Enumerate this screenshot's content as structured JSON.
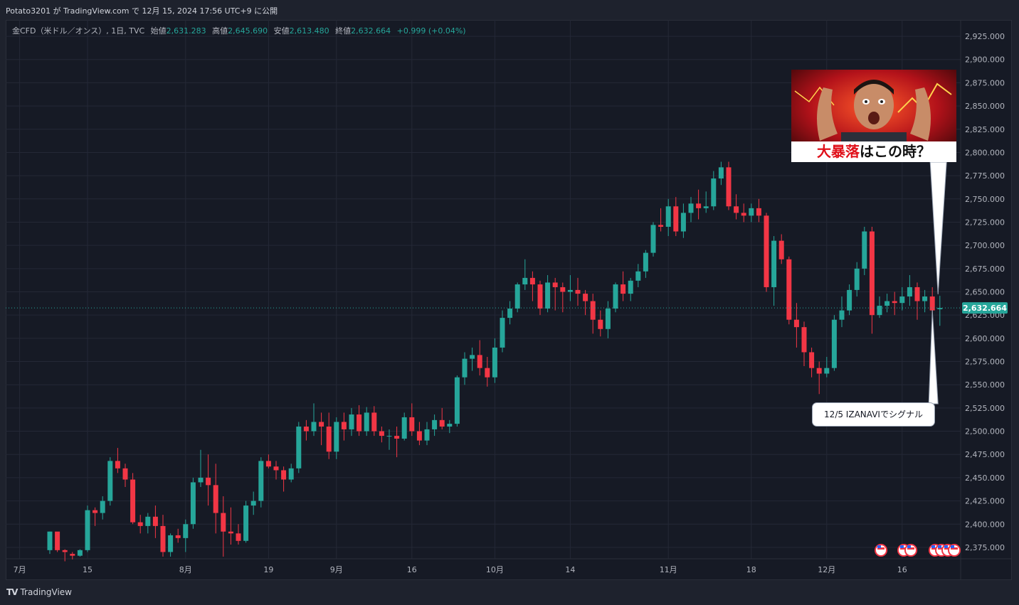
{
  "header": {
    "published_line": "Potato3201 が TradingView.com で 12月 15, 2024 17:56 UTC+9 に公開"
  },
  "legend": {
    "symbol": "金CFD（米ドル／オンス）, 1日, TVC",
    "open_label": "始値",
    "open_value": "2,631.283",
    "high_label": "高値",
    "high_value": "2,645.690",
    "low_label": "安値",
    "low_value": "2,613.480",
    "close_label": "終値",
    "close_value": "2,632.664",
    "change": "+0.999 (+0.04%)"
  },
  "thumbnail": {
    "caption_red": "大暴落",
    "caption_black": "はこの時？"
  },
  "signal_note": "12/5 IZANAVIでシグナル",
  "footer": {
    "logo_text": "TradingView"
  },
  "colors": {
    "up": "#26a69a",
    "down": "#f23645",
    "background": "#161a25",
    "grid": "#242836",
    "text": "#b2b5be",
    "price_tag": "#26a69a"
  },
  "chart_data": {
    "type": "candlestick",
    "title": "",
    "ylim": [
      2365,
      2935
    ],
    "y_ticks": [
      "2,375.000",
      "2,400.000",
      "2,425.000",
      "2,450.000",
      "2,475.000",
      "2,500.000",
      "2,525.000",
      "2,550.000",
      "2,575.000",
      "2,600.000",
      "2,625.000",
      "2,650.000",
      "2,675.000",
      "2,700.000",
      "2,725.000",
      "2,750.000",
      "2,775.000",
      "2,800.000",
      "2,825.000",
      "2,850.000",
      "2,875.000",
      "2,900.000",
      "2,925.000"
    ],
    "x_ticks": [
      {
        "label": "7月",
        "slot": -4
      },
      {
        "label": "15",
        "slot": 5
      },
      {
        "label": "8月",
        "slot": 18
      },
      {
        "label": "19",
        "slot": 29
      },
      {
        "label": "9月",
        "slot": 38
      },
      {
        "label": "16",
        "slot": 48
      },
      {
        "label": "10月",
        "slot": 59
      },
      {
        "label": "14",
        "slot": 69
      },
      {
        "label": "11月",
        "slot": 82
      },
      {
        "label": "18",
        "slot": 93
      },
      {
        "label": "12月",
        "slot": 103
      },
      {
        "label": "16",
        "slot": 113
      }
    ],
    "last_price": "2,632.664",
    "last_value": 2632.664,
    "candles": [
      [
        2372,
        2392,
        2368,
        2392
      ],
      [
        2392,
        2390,
        2370,
        2372
      ],
      [
        2372,
        2373,
        2360,
        2370
      ],
      [
        2368,
        2370,
        2362,
        2366
      ],
      [
        2366,
        2373,
        2365,
        2372
      ],
      [
        2372,
        2420,
        2370,
        2415
      ],
      [
        2415,
        2418,
        2398,
        2412
      ],
      [
        2412,
        2430,
        2405,
        2425
      ],
      [
        2425,
        2472,
        2420,
        2468
      ],
      [
        2468,
        2482,
        2455,
        2460
      ],
      [
        2460,
        2465,
        2440,
        2448
      ],
      [
        2448,
        2455,
        2400,
        2402
      ],
      [
        2402,
        2410,
        2390,
        2398
      ],
      [
        2398,
        2412,
        2390,
        2408
      ],
      [
        2408,
        2420,
        2385,
        2398
      ],
      [
        2398,
        2410,
        2365,
        2370
      ],
      [
        2370,
        2390,
        2365,
        2388
      ],
      [
        2388,
        2395,
        2380,
        2385
      ],
      [
        2385,
        2405,
        2370,
        2400
      ],
      [
        2400,
        2450,
        2395,
        2445
      ],
      [
        2445,
        2480,
        2440,
        2450
      ],
      [
        2450,
        2475,
        2420,
        2442
      ],
      [
        2442,
        2465,
        2390,
        2412
      ],
      [
        2412,
        2430,
        2365,
        2392
      ],
      [
        2392,
        2418,
        2378,
        2390
      ],
      [
        2390,
        2400,
        2378,
        2382
      ],
      [
        2382,
        2425,
        2380,
        2420
      ],
      [
        2420,
        2435,
        2410,
        2425
      ],
      [
        2425,
        2472,
        2418,
        2468
      ],
      [
        2468,
        2475,
        2460,
        2462
      ],
      [
        2462,
        2468,
        2448,
        2458
      ],
      [
        2458,
        2462,
        2435,
        2448
      ],
      [
        2448,
        2465,
        2445,
        2460
      ],
      [
        2460,
        2510,
        2455,
        2505
      ],
      [
        2505,
        2512,
        2490,
        2500
      ],
      [
        2500,
        2530,
        2495,
        2510
      ],
      [
        2510,
        2520,
        2485,
        2505
      ],
      [
        2505,
        2520,
        2470,
        2478
      ],
      [
        2478,
        2515,
        2470,
        2510
      ],
      [
        2510,
        2520,
        2490,
        2502
      ],
      [
        2502,
        2525,
        2495,
        2518
      ],
      [
        2518,
        2528,
        2495,
        2500
      ],
      [
        2500,
        2526,
        2495,
        2520
      ],
      [
        2520,
        2527,
        2495,
        2500
      ],
      [
        2500,
        2505,
        2488,
        2495
      ],
      [
        2495,
        2502,
        2480,
        2495
      ],
      [
        2495,
        2505,
        2472,
        2492
      ],
      [
        2492,
        2520,
        2490,
        2515
      ],
      [
        2515,
        2530,
        2495,
        2500
      ],
      [
        2500,
        2510,
        2485,
        2490
      ],
      [
        2490,
        2510,
        2485,
        2502
      ],
      [
        2502,
        2518,
        2495,
        2512
      ],
      [
        2512,
        2525,
        2502,
        2505
      ],
      [
        2505,
        2512,
        2498,
        2508
      ],
      [
        2508,
        2560,
        2505,
        2558
      ],
      [
        2558,
        2585,
        2550,
        2578
      ],
      [
        2578,
        2590,
        2565,
        2582
      ],
      [
        2582,
        2598,
        2560,
        2568
      ],
      [
        2568,
        2580,
        2548,
        2558
      ],
      [
        2558,
        2600,
        2552,
        2590
      ],
      [
        2590,
        2630,
        2585,
        2622
      ],
      [
        2622,
        2640,
        2615,
        2632
      ],
      [
        2632,
        2660,
        2628,
        2658
      ],
      [
        2658,
        2685,
        2652,
        2665
      ],
      [
        2665,
        2672,
        2640,
        2658
      ],
      [
        2658,
        2662,
        2625,
        2632
      ],
      [
        2632,
        2668,
        2628,
        2660
      ],
      [
        2660,
        2665,
        2630,
        2655
      ],
      [
        2655,
        2660,
        2628,
        2650
      ],
      [
        2650,
        2668,
        2640,
        2652
      ],
      [
        2652,
        2665,
        2635,
        2648
      ],
      [
        2648,
        2652,
        2625,
        2640
      ],
      [
        2640,
        2648,
        2605,
        2620
      ],
      [
        2620,
        2630,
        2602,
        2610
      ],
      [
        2610,
        2640,
        2600,
        2632
      ],
      [
        2632,
        2660,
        2628,
        2658
      ],
      [
        2658,
        2672,
        2640,
        2648
      ],
      [
        2648,
        2665,
        2640,
        2662
      ],
      [
        2662,
        2680,
        2655,
        2672
      ],
      [
        2672,
        2695,
        2665,
        2692
      ],
      [
        2692,
        2725,
        2688,
        2722
      ],
      [
        2722,
        2740,
        2715,
        2720
      ],
      [
        2720,
        2750,
        2710,
        2742
      ],
      [
        2742,
        2752,
        2710,
        2715
      ],
      [
        2715,
        2745,
        2708,
        2735
      ],
      [
        2735,
        2752,
        2725,
        2745
      ],
      [
        2745,
        2760,
        2728,
        2740
      ],
      [
        2740,
        2758,
        2735,
        2742
      ],
      [
        2742,
        2780,
        2738,
        2772
      ],
      [
        2772,
        2790,
        2765,
        2784
      ],
      [
        2784,
        2790,
        2738,
        2742
      ],
      [
        2742,
        2755,
        2728,
        2735
      ],
      [
        2735,
        2745,
        2725,
        2732
      ],
      [
        2732,
        2745,
        2725,
        2740
      ],
      [
        2740,
        2750,
        2725,
        2732
      ],
      [
        2732,
        2735,
        2650,
        2655
      ],
      [
        2655,
        2710,
        2635,
        2705
      ],
      [
        2705,
        2712,
        2680,
        2685
      ],
      [
        2685,
        2688,
        2615,
        2620
      ],
      [
        2620,
        2638,
        2590,
        2612
      ],
      [
        2612,
        2618,
        2570,
        2585
      ],
      [
        2585,
        2590,
        2558,
        2568
      ],
      [
        2568,
        2575,
        2540,
        2562
      ],
      [
        2562,
        2580,
        2558,
        2568
      ],
      [
        2568,
        2625,
        2565,
        2620
      ],
      [
        2620,
        2645,
        2612,
        2630
      ],
      [
        2630,
        2658,
        2625,
        2652
      ],
      [
        2652,
        2682,
        2645,
        2675
      ],
      [
        2675,
        2720,
        2668,
        2715
      ],
      [
        2715,
        2720,
        2605,
        2625
      ],
      [
        2625,
        2645,
        2622,
        2635
      ],
      [
        2635,
        2648,
        2628,
        2640
      ],
      [
        2640,
        2650,
        2625,
        2638
      ],
      [
        2638,
        2655,
        2630,
        2645
      ],
      [
        2645,
        2668,
        2635,
        2655
      ],
      [
        2655,
        2660,
        2620,
        2640
      ],
      [
        2640,
        2652,
        2628,
        2645
      ],
      [
        2645,
        2655,
        2625,
        2630
      ],
      [
        2631.283,
        2645.69,
        2613.48,
        2632.664
      ]
    ]
  }
}
